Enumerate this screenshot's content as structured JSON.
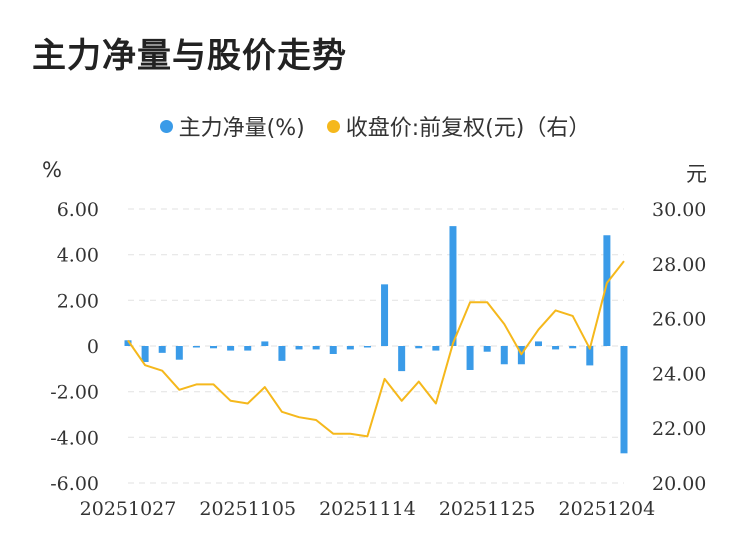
{
  "title": "主力净量与股价走势",
  "units": {
    "left": "%",
    "right": "元"
  },
  "colors": {
    "bar": "#3a9be8",
    "line": "#f5b81c",
    "grid": "#e6e6e6"
  },
  "chart_data": {
    "type": "bar",
    "title": "主力净量与股价走势",
    "x_tick_labels": [
      "20251027",
      "20251105",
      "20251114",
      "20251125",
      "20251204"
    ],
    "x_tick_index": [
      0,
      7,
      14,
      21,
      28
    ],
    "y_left": {
      "ticks": [
        "6.00",
        "4.00",
        "2.00",
        "0",
        "-2.00",
        "-4.00",
        "-6.00"
      ],
      "ylim": [
        -6,
        6
      ]
    },
    "y_right": {
      "ticks": [
        "30.00",
        "28.00",
        "26.00",
        "24.00",
        "22.00",
        "20.00"
      ],
      "ylim": [
        20,
        30
      ]
    },
    "grid": "horizontal-dashed",
    "legend_position": "top-center",
    "series": [
      {
        "name": "主力净量(%)",
        "type": "bar",
        "axis": "left",
        "values": [
          0.25,
          -0.7,
          -0.3,
          -0.6,
          -0.05,
          -0.1,
          -0.2,
          -0.2,
          0.2,
          -0.65,
          -0.15,
          -0.15,
          -0.35,
          -0.15,
          -0.05,
          2.7,
          -1.1,
          -0.1,
          -0.2,
          5.25,
          -1.05,
          -0.25,
          -0.8,
          -0.8,
          0.2,
          -0.15,
          -0.1,
          -0.85,
          4.85,
          -4.7
        ]
      },
      {
        "name": "收盘价:前复权(元)（右）",
        "type": "line",
        "axis": "right",
        "values": [
          25.2,
          24.3,
          24.1,
          23.4,
          23.6,
          23.6,
          23.0,
          22.9,
          23.5,
          22.6,
          22.4,
          22.3,
          21.8,
          21.8,
          21.7,
          23.8,
          23.0,
          23.7,
          22.9,
          25.1,
          26.6,
          26.6,
          25.8,
          24.7,
          25.6,
          26.3,
          26.1,
          24.9,
          27.3,
          28.1
        ]
      }
    ]
  }
}
